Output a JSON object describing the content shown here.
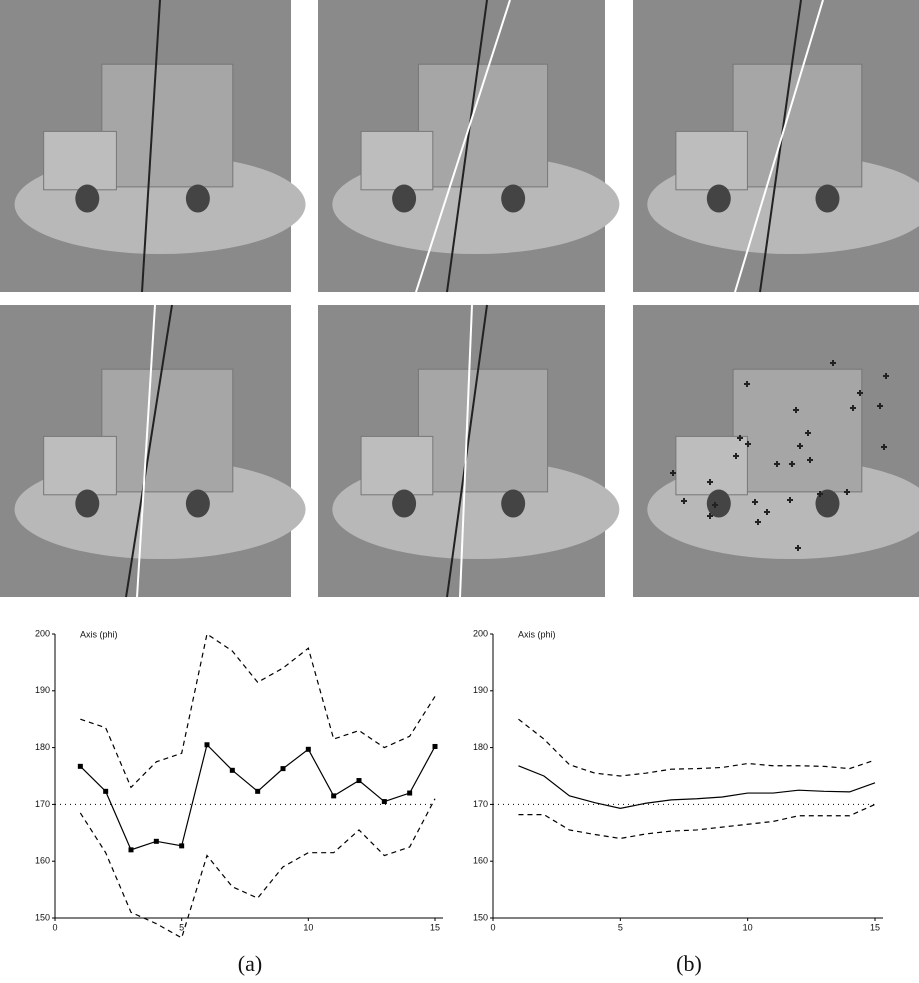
{
  "chart_data": [
    {
      "type": "line",
      "title": "Axis (phi)",
      "caption": "(a)",
      "x": [
        1,
        2,
        3,
        4,
        5,
        6,
        7,
        8,
        9,
        10,
        11,
        12,
        13,
        14,
        15
      ],
      "series": [
        {
          "color": "#000000",
          "line_style": "solid",
          "marker": "square",
          "values": [
            176.7,
            172.3,
            162,
            163.5,
            162.7,
            180.5,
            176,
            172.3,
            176.3,
            179.7,
            171.5,
            174.2,
            170.5,
            172,
            180.2
          ]
        },
        {
          "color": "#000000",
          "line_style": "dashed",
          "values": [
            185,
            183.5,
            173,
            177.5,
            179,
            200,
            197,
            191.5,
            194,
            197.5,
            181.5,
            183,
            180,
            182,
            189
          ]
        },
        {
          "color": "#000000",
          "line_style": "dashed",
          "values": [
            168.5,
            161.5,
            151,
            149,
            146.5,
            161,
            155.5,
            153.5,
            159,
            161.5,
            161.5,
            165.5,
            161,
            162.5,
            171
          ]
        }
      ],
      "reference": 170,
      "xlim": [
        0,
        15
      ],
      "xticks": [
        0,
        5,
        10,
        15
      ],
      "ylim": [
        150,
        200
      ],
      "yticks": [
        150,
        160,
        170,
        180,
        190,
        200
      ]
    },
    {
      "type": "line",
      "title": "Axis (phi)",
      "caption": "(b)",
      "x": [
        1,
        2,
        3,
        4,
        5,
        6,
        7,
        8,
        9,
        10,
        11,
        12,
        13,
        14,
        15
      ],
      "series": [
        {
          "color": "#000000",
          "line_style": "solid",
          "values": [
            176.8,
            175,
            171.5,
            170.3,
            169.3,
            170.2,
            170.8,
            171,
            171.3,
            172,
            172,
            172.5,
            172.3,
            172.2,
            173.8
          ]
        },
        {
          "color": "#000000",
          "line_style": "dashed",
          "values": [
            185,
            181.5,
            177,
            175.5,
            175,
            175.5,
            176.2,
            176.3,
            176.5,
            177.2,
            176.8,
            176.8,
            176.7,
            176.3,
            177.8
          ]
        },
        {
          "color": "#000000",
          "line_style": "dashed",
          "values": [
            168.2,
            168.2,
            165.5,
            164.7,
            164,
            164.8,
            165.3,
            165.5,
            166,
            166.5,
            167,
            168,
            168,
            168,
            170
          ]
        }
      ],
      "reference": 170,
      "xlim": [
        0,
        15
      ],
      "xticks": [
        0,
        5,
        10,
        15
      ],
      "ylim": [
        150,
        200
      ],
      "yticks": [
        150,
        160,
        170,
        180,
        190,
        200
      ]
    }
  ]
}
